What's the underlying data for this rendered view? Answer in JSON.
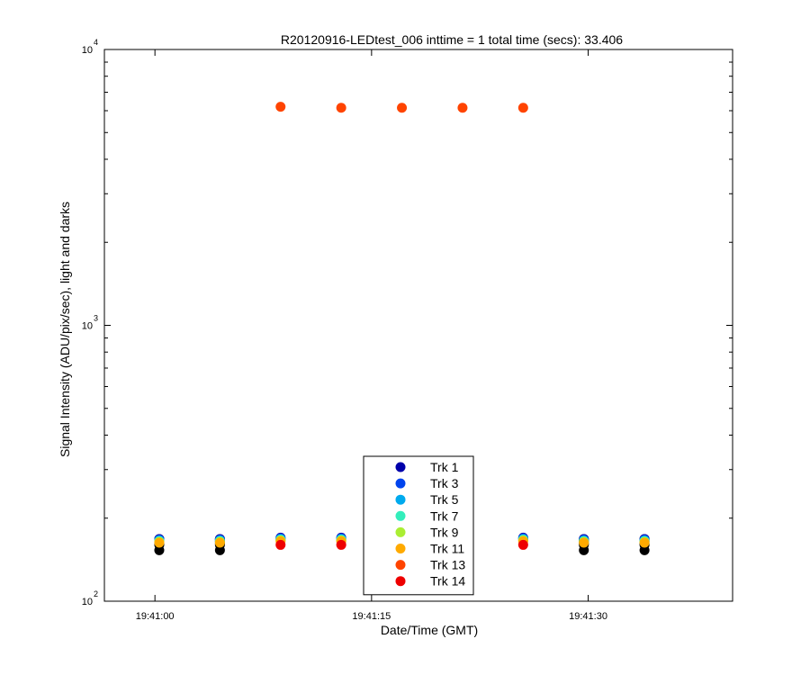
{
  "chart_data": {
    "type": "scatter",
    "title": "R20120916-LEDtest_006 inttime = 1 total time (secs): 33.406",
    "xlabel": "Date/Time (GMT)",
    "ylabel": "Signal Intensity (ADU/pix/sec), light and darks",
    "yscale": "log",
    "ylim": [
      100,
      10000
    ],
    "xlim": [
      "19:40:56.5",
      "19:41:40"
    ],
    "xticks": [
      {
        "value": "19:41:00",
        "label": "19:41:00"
      },
      {
        "value": "19:41:15",
        "label": "19:41:15"
      },
      {
        "value": "19:41:30",
        "label": "19:41:30"
      }
    ],
    "yticks": [
      {
        "value": 100,
        "base": "10",
        "exp": "2"
      },
      {
        "value": 1000,
        "base": "10",
        "exp": "3"
      },
      {
        "value": 10000,
        "base": "10",
        "exp": "4"
      }
    ],
    "legend_position": "bottom-center",
    "x": [
      "19:41:00.3",
      "19:41:04.5",
      "19:41:08.7",
      "19:41:12.9",
      "19:41:17.1",
      "19:41:21.3",
      "19:41:25.5",
      "19:41:29.7",
      "19:41:33.9"
    ],
    "series": [
      {
        "name": "Trk 1",
        "color": "#0000aa",
        "values": [
          168,
          168,
          170,
          170,
          null,
          null,
          170,
          168,
          168
        ]
      },
      {
        "name": "Trk 3",
        "color": "#0044ee",
        "values": [
          167,
          167,
          169,
          169,
          null,
          null,
          169,
          167,
          167
        ]
      },
      {
        "name": "Trk 5",
        "color": "#00aaee",
        "values": [
          166,
          166,
          168,
          168,
          null,
          null,
          168,
          166,
          166
        ]
      },
      {
        "name": "Trk 7",
        "color": "#33eebb",
        "values": [
          165,
          165,
          167,
          167,
          null,
          null,
          167,
          165,
          165
        ]
      },
      {
        "name": "Trk 9",
        "color": "#aaee33",
        "values": [
          164,
          164,
          166,
          166,
          null,
          null,
          166,
          164,
          164
        ]
      },
      {
        "name": "Trk 11",
        "color": "#ffaa00",
        "values": [
          163,
          163,
          165,
          165,
          null,
          null,
          165,
          163,
          163
        ]
      },
      {
        "name": "Trk 13",
        "color": "#ff4400",
        "values": [
          null,
          null,
          6200,
          6150,
          6150,
          6150,
          6150,
          null,
          null
        ]
      },
      {
        "name": "Trk 14",
        "color": "#ee0000",
        "values": [
          null,
          null,
          160,
          160,
          null,
          null,
          160,
          null,
          null
        ]
      }
    ],
    "darks": {
      "color": "#000000",
      "x": [
        "19:41:00.3",
        "19:41:04.5",
        "19:41:29.7",
        "19:41:33.9"
      ],
      "values": [
        [
          168,
          165,
          162,
          160,
          153
        ],
        [
          168,
          165,
          162,
          160,
          153
        ],
        [
          168,
          165,
          162,
          160,
          153
        ],
        [
          168,
          165,
          162,
          160,
          153
        ]
      ]
    }
  }
}
